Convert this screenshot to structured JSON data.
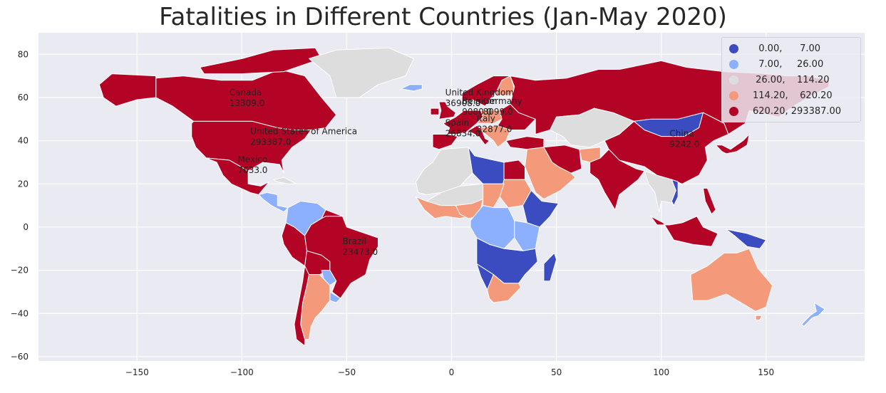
{
  "title": "Fatalities in Different Countries (Jan-May 2020)",
  "colors": {
    "background": "#EAEAF2",
    "grid": "#FFFFFF",
    "c0": "#3B4CC0",
    "c1": "#8DB0FE",
    "c2": "#DDDDDD",
    "c3": "#F49A7B",
    "c4": "#B40426"
  },
  "legend": {
    "placement": "top-right",
    "items": [
      {
        "label": "  0.00,      7.00",
        "color": "#3B4CC0"
      },
      {
        "label": "  7.00,     26.00",
        "color": "#8DB0FE"
      },
      {
        "label": " 26.00,    114.20",
        "color": "#DDDDDD"
      },
      {
        "label": "114.20,    620.20",
        "color": "#F49A7B"
      },
      {
        "label": "620.20, 293387.00",
        "color": "#B40426"
      }
    ]
  },
  "chart_data": {
    "type": "map",
    "title": "Fatalities in Different Countries (Jan-May 2020)",
    "xlim": [
      -197,
      197
    ],
    "ylim": [
      -62,
      90
    ],
    "xticks": [
      -150,
      -100,
      -50,
      0,
      50,
      100,
      150
    ],
    "yticks": [
      -60,
      -40,
      -20,
      0,
      20,
      40,
      60,
      80
    ],
    "grid": true,
    "bins": [
      [
        0.0,
        7.0
      ],
      [
        7.0,
        26.0
      ],
      [
        26.0,
        114.2
      ],
      [
        114.2,
        620.2
      ],
      [
        620.2,
        293387.0
      ]
    ],
    "annotations": [
      {
        "name": "Canada",
        "value": "13309.0",
        "lon": -106,
        "lat": 61
      },
      {
        "name": "United States of America",
        "value": "293387.0",
        "lon": -96,
        "lat": 43
      },
      {
        "name": "Mexico",
        "value": "7633.0",
        "lon": -102,
        "lat": 30
      },
      {
        "name": "Brazil",
        "value": "23473.0",
        "lon": -52,
        "lat": -8
      },
      {
        "name": "United Kingdom",
        "value": "36908.0",
        "lon": -3,
        "lat": 61
      },
      {
        "name": "Belgium",
        "value": "9080.0",
        "lon": 5,
        "lat": 57
      },
      {
        "name": "Germany",
        "value": "8099.0",
        "lon": 15,
        "lat": 57
      },
      {
        "name": "Spain",
        "value": "26834.0",
        "lon": -3,
        "lat": 47
      },
      {
        "name": "Italy",
        "value": "32877.0",
        "lon": 12,
        "lat": 49
      },
      {
        "name": "China",
        "value": "9242.0",
        "lon": 104,
        "lat": 42
      }
    ]
  }
}
